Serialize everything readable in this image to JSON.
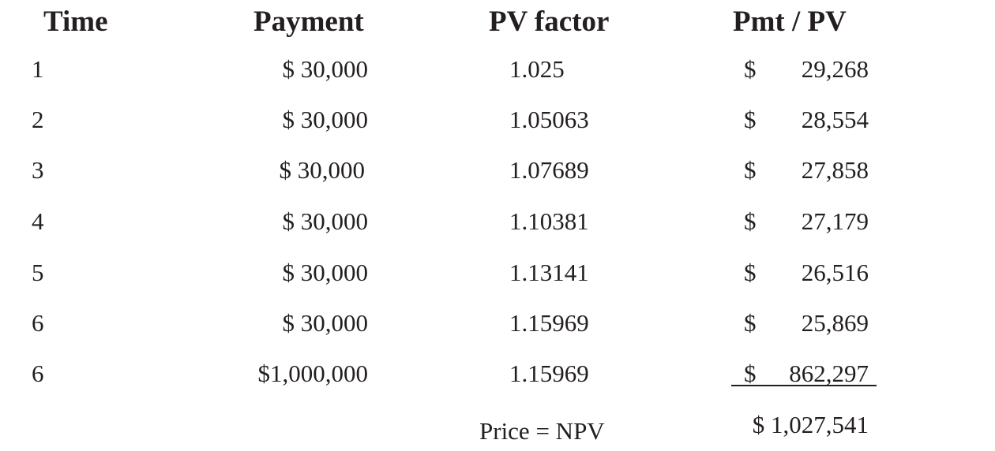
{
  "headers": {
    "time": "Time",
    "payment": "Payment",
    "pv_factor": "PV factor",
    "pmt_pv": "Pmt / PV"
  },
  "rows": [
    {
      "time": "1",
      "payment": "$ 30,000",
      "pv_factor": "1.025",
      "currency": "$",
      "pmt_pv": "29,268"
    },
    {
      "time": "2",
      "payment": "$ 30,000",
      "pv_factor": "1.05063",
      "currency": "$",
      "pmt_pv": "28,554"
    },
    {
      "time": "3",
      "payment": "$ 30,000",
      "pv_factor": "1.07689",
      "currency": "$",
      "pmt_pv": "27,858"
    },
    {
      "time": "4",
      "payment": "$ 30,000",
      "pv_factor": "1.10381",
      "currency": "$",
      "pmt_pv": "27,179"
    },
    {
      "time": "5",
      "payment": "$ 30,000",
      "pv_factor": "1.13141",
      "currency": "$",
      "pmt_pv": "26,516"
    },
    {
      "time": "6",
      "payment": "$ 30,000",
      "pv_factor": "1.15969",
      "currency": "$",
      "pmt_pv": "25,869"
    },
    {
      "time": "6",
      "payment": "$1,000,000",
      "pv_factor": "1.15969",
      "currency": "$",
      "pmt_pv": "862,297"
    }
  ],
  "total": {
    "label": "Price = NPV",
    "value": "$ 1,027,541"
  },
  "colors": {
    "text": "#231f20",
    "background": "#ffffff"
  }
}
